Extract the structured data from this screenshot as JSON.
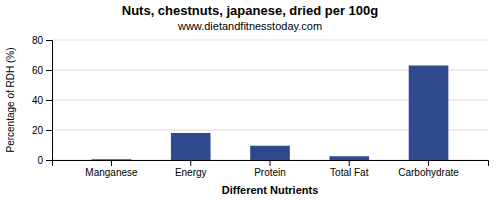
{
  "chart_data": {
    "type": "bar",
    "title": "Nuts, chestnuts, japanese, dried per 100g",
    "subtitle": "www.dietandfitnesstoday.com",
    "xlabel": "Different Nutrients",
    "ylabel": "Percentage of RDH (%)",
    "categories": [
      "Manganese",
      "Energy",
      "Protein",
      "Total Fat",
      "Carbohydrate"
    ],
    "values": [
      0.5,
      18,
      9.5,
      2.5,
      63
    ],
    "color": "#2e4a8e",
    "ylim": [
      0,
      80
    ],
    "yticks": [
      0,
      20,
      40,
      60,
      80
    ],
    "grid": true
  }
}
